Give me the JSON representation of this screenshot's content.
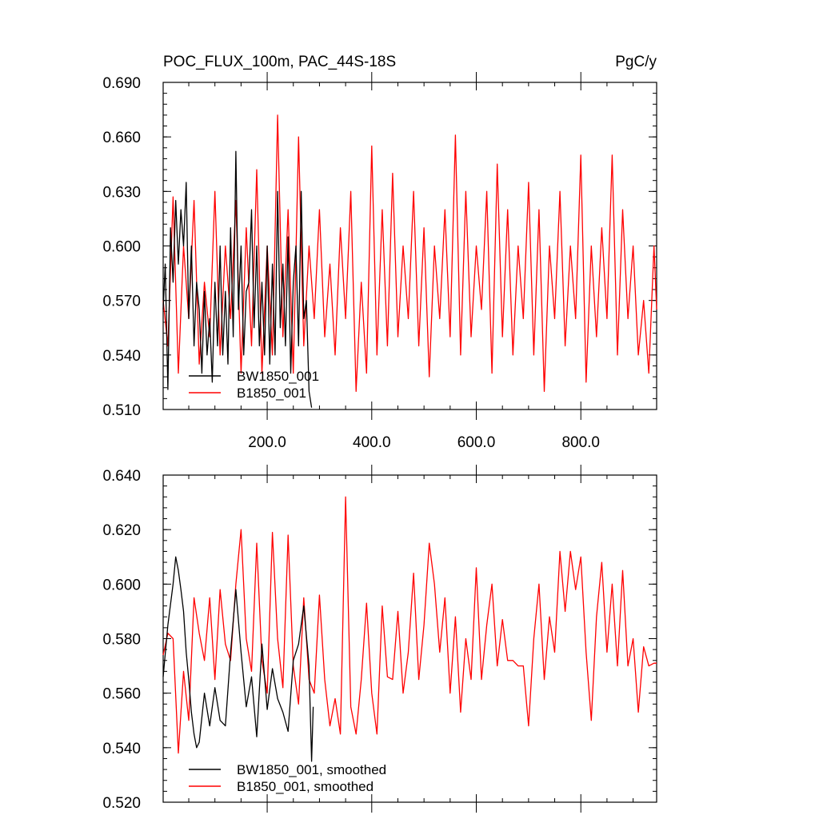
{
  "chart_data": [
    {
      "type": "line",
      "title": "POC_FLUX_100m, PAC_44S-18S",
      "units": "PgC/y",
      "xlim": [
        1,
        945
      ],
      "ylim": [
        0.51,
        0.69
      ],
      "xticks": [
        200,
        400,
        600,
        800
      ],
      "xtick_labels": [
        "200.0",
        "400.0",
        "600.0",
        "800.0"
      ],
      "yticks": [
        0.51,
        0.54,
        0.57,
        0.6,
        0.63,
        0.66,
        0.69
      ],
      "ytick_labels": [
        "0.510",
        "0.540",
        "0.570",
        "0.600",
        "0.630",
        "0.660",
        "0.690"
      ],
      "legend_position": "bottom-left",
      "series": [
        {
          "name": "BW1850_001",
          "color": "#000000",
          "x": [
            1,
            5,
            10,
            15,
            20,
            25,
            30,
            35,
            40,
            45,
            50,
            55,
            60,
            65,
            70,
            75,
            80,
            85,
            90,
            95,
            100,
            105,
            110,
            115,
            120,
            125,
            130,
            135,
            140,
            145,
            150,
            155,
            160,
            165,
            170,
            175,
            180,
            185,
            190,
            195,
            200,
            205,
            210,
            215,
            220,
            225,
            230,
            235,
            240,
            245,
            250,
            255,
            260,
            265,
            270,
            275,
            280,
            285
          ],
          "values": [
            0.565,
            0.59,
            0.521,
            0.61,
            0.58,
            0.625,
            0.59,
            0.62,
            0.6,
            0.635,
            0.56,
            0.6,
            0.545,
            0.58,
            0.565,
            0.53,
            0.575,
            0.54,
            0.56,
            0.525,
            0.58,
            0.545,
            0.6,
            0.54,
            0.575,
            0.535,
            0.61,
            0.55,
            0.652,
            0.565,
            0.6,
            0.54,
            0.575,
            0.58,
            0.62,
            0.555,
            0.6,
            0.545,
            0.58,
            0.54,
            0.6,
            0.535,
            0.59,
            0.54,
            0.63,
            0.555,
            0.59,
            0.545,
            0.605,
            0.53,
            0.58,
            0.6,
            0.545,
            0.63,
            0.56,
            0.57,
            0.52,
            0.511
          ]
        },
        {
          "name": "B1850_001",
          "color": "#ff0000",
          "x": [
            1,
            10,
            20,
            30,
            40,
            50,
            60,
            70,
            80,
            90,
            100,
            110,
            120,
            130,
            140,
            150,
            160,
            170,
            180,
            190,
            200,
            210,
            220,
            230,
            240,
            250,
            260,
            270,
            280,
            290,
            300,
            310,
            320,
            330,
            340,
            350,
            360,
            370,
            380,
            390,
            400,
            410,
            420,
            430,
            440,
            450,
            460,
            470,
            480,
            490,
            500,
            510,
            520,
            530,
            540,
            550,
            560,
            570,
            580,
            590,
            600,
            610,
            620,
            630,
            640,
            650,
            660,
            670,
            680,
            690,
            700,
            710,
            720,
            730,
            740,
            750,
            760,
            770,
            780,
            790,
            800,
            810,
            820,
            830,
            840,
            850,
            860,
            870,
            880,
            890,
            900,
            910,
            920,
            930,
            940,
            945
          ],
          "values": [
            0.57,
            0.545,
            0.627,
            0.53,
            0.6,
            0.56,
            0.625,
            0.535,
            0.58,
            0.55,
            0.63,
            0.54,
            0.6,
            0.56,
            0.625,
            0.53,
            0.61,
            0.545,
            0.642,
            0.53,
            0.6,
            0.54,
            0.672,
            0.55,
            0.62,
            0.53,
            0.66,
            0.545,
            0.6,
            0.56,
            0.62,
            0.55,
            0.59,
            0.54,
            0.61,
            0.56,
            0.63,
            0.52,
            0.58,
            0.53,
            0.655,
            0.54,
            0.62,
            0.545,
            0.64,
            0.55,
            0.6,
            0.56,
            0.63,
            0.545,
            0.61,
            0.528,
            0.6,
            0.56,
            0.62,
            0.55,
            0.661,
            0.54,
            0.63,
            0.55,
            0.6,
            0.565,
            0.63,
            0.53,
            0.645,
            0.55,
            0.62,
            0.54,
            0.6,
            0.56,
            0.635,
            0.54,
            0.62,
            0.52,
            0.6,
            0.56,
            0.63,
            0.545,
            0.6,
            0.56,
            0.65,
            0.525,
            0.6,
            0.55,
            0.61,
            0.56,
            0.65,
            0.54,
            0.62,
            0.56,
            0.6,
            0.54,
            0.57,
            0.53,
            0.6,
            0.565
          ]
        }
      ]
    },
    {
      "type": "line",
      "xlim": [
        1,
        945
      ],
      "ylim": [
        0.52,
        0.64
      ],
      "xticks": [
        200,
        400,
        600,
        800
      ],
      "yticks": [
        0.52,
        0.54,
        0.56,
        0.58,
        0.6,
        0.62,
        0.64
      ],
      "ytick_labels": [
        "0.520",
        "0.540",
        "0.560",
        "0.580",
        "0.600",
        "0.620",
        "0.640"
      ],
      "legend_position": "bottom-left",
      "series": [
        {
          "name": "BW1850_001, smoothed",
          "color": "#000000",
          "x": [
            1,
            10,
            20,
            25,
            30,
            35,
            40,
            45,
            50,
            55,
            60,
            65,
            70,
            80,
            90,
            100,
            110,
            120,
            130,
            140,
            150,
            160,
            170,
            180,
            190,
            200,
            210,
            220,
            230,
            240,
            250,
            260,
            270,
            280,
            285,
            288
          ],
          "values": [
            0.566,
            0.585,
            0.6,
            0.61,
            0.605,
            0.598,
            0.59,
            0.575,
            0.565,
            0.553,
            0.545,
            0.54,
            0.542,
            0.56,
            0.548,
            0.562,
            0.55,
            0.548,
            0.575,
            0.598,
            0.575,
            0.555,
            0.566,
            0.544,
            0.578,
            0.554,
            0.569,
            0.558,
            0.553,
            0.546,
            0.572,
            0.578,
            0.592,
            0.57,
            0.535,
            0.555
          ]
        },
        {
          "name": "B1850_001, smoothed",
          "color": "#ff0000",
          "x": [
            1,
            10,
            20,
            30,
            40,
            50,
            60,
            70,
            80,
            90,
            100,
            110,
            120,
            130,
            140,
            150,
            160,
            170,
            180,
            190,
            200,
            210,
            220,
            230,
            240,
            250,
            260,
            270,
            280,
            290,
            300,
            310,
            320,
            330,
            340,
            350,
            360,
            370,
            380,
            390,
            400,
            410,
            420,
            430,
            440,
            450,
            460,
            470,
            480,
            490,
            500,
            510,
            520,
            530,
            540,
            550,
            560,
            570,
            580,
            590,
            600,
            610,
            620,
            630,
            640,
            650,
            660,
            670,
            680,
            690,
            700,
            710,
            720,
            730,
            740,
            750,
            760,
            770,
            780,
            790,
            800,
            810,
            820,
            830,
            840,
            850,
            860,
            870,
            880,
            890,
            900,
            910,
            920,
            930,
            940,
            945
          ],
          "values": [
            0.574,
            0.582,
            0.58,
            0.538,
            0.568,
            0.55,
            0.595,
            0.582,
            0.572,
            0.595,
            0.565,
            0.598,
            0.578,
            0.572,
            0.6,
            0.62,
            0.58,
            0.568,
            0.615,
            0.572,
            0.56,
            0.619,
            0.58,
            0.562,
            0.618,
            0.57,
            0.556,
            0.595,
            0.565,
            0.56,
            0.596,
            0.565,
            0.548,
            0.558,
            0.545,
            0.632,
            0.555,
            0.545,
            0.565,
            0.593,
            0.56,
            0.545,
            0.592,
            0.566,
            0.565,
            0.59,
            0.56,
            0.575,
            0.604,
            0.565,
            0.585,
            0.615,
            0.6,
            0.575,
            0.595,
            0.56,
            0.588,
            0.553,
            0.58,
            0.565,
            0.606,
            0.565,
            0.585,
            0.6,
            0.57,
            0.587,
            0.572,
            0.572,
            0.57,
            0.57,
            0.548,
            0.58,
            0.6,
            0.565,
            0.588,
            0.575,
            0.612,
            0.59,
            0.612,
            0.598,
            0.61,
            0.575,
            0.55,
            0.588,
            0.608,
            0.575,
            0.6,
            0.57,
            0.605,
            0.57,
            0.58,
            0.553,
            0.577,
            0.57,
            0.571,
            0.571
          ]
        }
      ]
    }
  ]
}
